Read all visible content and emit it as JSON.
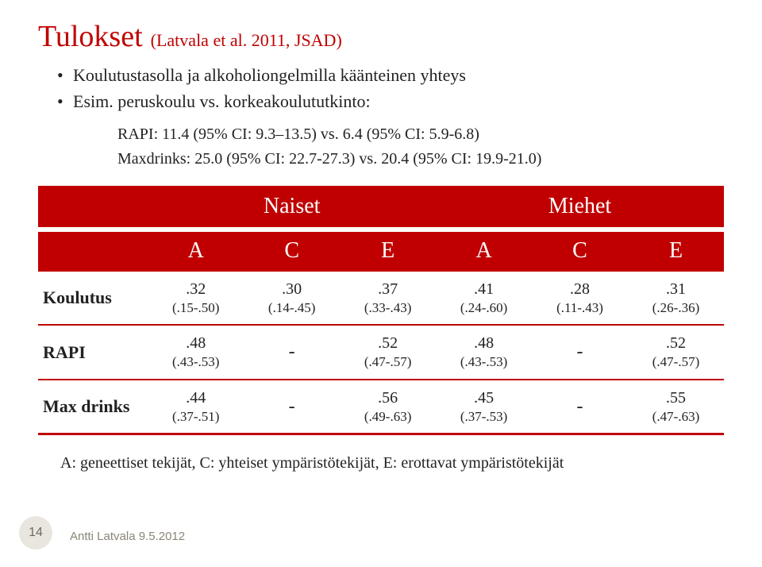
{
  "colors": {
    "accent": "#c00000",
    "text": "#222222",
    "footer": "#8a8676",
    "pagebg": "#e9e6df"
  },
  "title": {
    "main": "Tulokset",
    "sub": "(Latvala et al. 2011, JSAD)"
  },
  "bullets": [
    "Koulutustasolla ja alkoholiongelmilla käänteinen yhteys",
    "Esim. peruskoulu vs. korkeakoulututkinto:"
  ],
  "stats_lines": [
    "RAPI: 11.4 (95% CI: 9.3–13.5) vs. 6.4 (95% CI: 5.9-6.8)",
    "Maxdrinks: 25.0 (95% CI: 22.7-27.3) vs. 20.4 (95% CI: 19.9-21.0)"
  ],
  "table": {
    "group_headers": [
      "Naiset",
      "Miehet"
    ],
    "col_headers": [
      "A",
      "C",
      "E",
      "A",
      "C",
      "E"
    ],
    "rows": [
      {
        "label": "Koulutus",
        "cells": [
          {
            "v": ".32",
            "ci": "(.15-.50)"
          },
          {
            "v": ".30",
            "ci": "(.14-.45)"
          },
          {
            "v": ".37",
            "ci": "(.33-.43)"
          },
          {
            "v": ".41",
            "ci": "(.24-.60)"
          },
          {
            "v": ".28",
            "ci": "(.11-.43)"
          },
          {
            "v": ".31",
            "ci": "(.26-.36)"
          }
        ]
      },
      {
        "label": "RAPI",
        "cells": [
          {
            "v": ".48",
            "ci": "(.43-.53)"
          },
          {
            "dash": true
          },
          {
            "v": ".52",
            "ci": "(.47-.57)"
          },
          {
            "v": ".48",
            "ci": "(.43-.53)"
          },
          {
            "dash": true
          },
          {
            "v": ".52",
            "ci": "(.47-.57)"
          }
        ]
      },
      {
        "label": "Max drinks",
        "cells": [
          {
            "v": ".44",
            "ci": "(.37-.51)"
          },
          {
            "dash": true
          },
          {
            "v": ".56",
            "ci": "(.49-.63)"
          },
          {
            "v": ".45",
            "ci": "(.37-.53)"
          },
          {
            "dash": true
          },
          {
            "v": ".55",
            "ci": "(.47-.63)"
          }
        ]
      }
    ]
  },
  "legend": "A: geneettiset tekijät, C: yhteiset ympäristötekijät, E: erottavat ympäristötekijät",
  "footer": {
    "page": "14",
    "text": "Antti Latvala 9.5.2012"
  }
}
